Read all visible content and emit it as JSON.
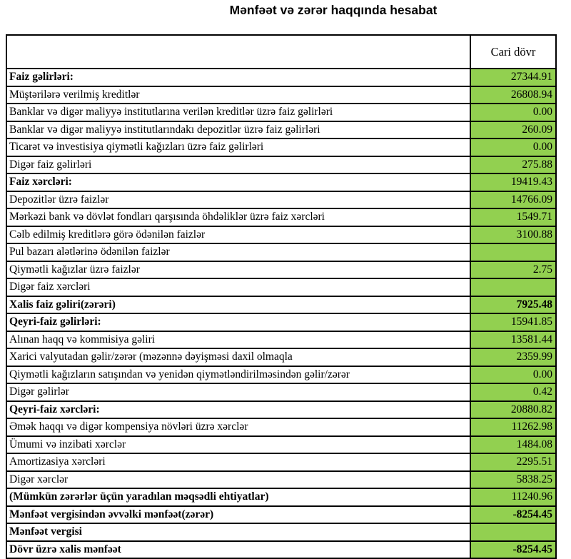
{
  "title": "Mənfəət və zərər haqqında hesabat",
  "colors": {
    "value_cell_bg": "#92d050",
    "border": "#000000"
  },
  "table": {
    "header": {
      "label_column": "",
      "value_column": "Cari dövr"
    },
    "rows": [
      {
        "label": "Faiz gəlirləri:",
        "value": "27344.91",
        "bold_label": true,
        "bold_value": false
      },
      {
        "label": "Müştərilərə verilmiş kreditlər",
        "value": "26808.94",
        "bold_label": false,
        "bold_value": false
      },
      {
        "label": "Banklar və digər maliyyə institutlarına verilən kreditlər üzrə faiz gəlirləri",
        "value": "0.00",
        "bold_label": false,
        "bold_value": false
      },
      {
        "label": "Banklar və digər maliyyə institutlarındakı depozitlər üzrə faiz gəlirləri",
        "value": "260.09",
        "bold_label": false,
        "bold_value": false
      },
      {
        "label": "Ticarət və investisiya qiymətli kağızları üzrə faiz gəlirləri",
        "value": "0.00",
        "bold_label": false,
        "bold_value": false
      },
      {
        "label": "Digər faiz gəlirləri",
        "value": "275.88",
        "bold_label": false,
        "bold_value": false
      },
      {
        "label": "Faiz xərcləri:",
        "value": "19419.43",
        "bold_label": true,
        "bold_value": false
      },
      {
        "label": "Depozitlər üzrə faizlər",
        "value": "14766.09",
        "bold_label": false,
        "bold_value": false
      },
      {
        "label": "Mərkəzi bank və dövlət fondları qarşısında öhdəliklər üzrə faiz xərcləri",
        "value": "1549.71",
        "bold_label": false,
        "bold_value": false
      },
      {
        "label": "Cəlb edilmiş kreditlərə görə ödənilən faizlər",
        "value": "3100.88",
        "bold_label": false,
        "bold_value": false
      },
      {
        "label": "Pul bazarı alətlərinə ödənilən faizlər",
        "value": "",
        "bold_label": false,
        "bold_value": false
      },
      {
        "label": "Qiymətli kağızlar üzrə faizlər",
        "value": "2.75",
        "bold_label": false,
        "bold_value": false
      },
      {
        "label": "Digər faiz xərcləri",
        "value": "",
        "bold_label": false,
        "bold_value": false
      },
      {
        "label": "Xalis faiz gəliri(zərəri)",
        "value": "7925.48",
        "bold_label": true,
        "bold_value": true
      },
      {
        "label": "Qeyri-faiz gəlirləri:",
        "value": "15941.85",
        "bold_label": true,
        "bold_value": false
      },
      {
        "label": "Alınan haqq və kommisiya gəliri",
        "value": "13581.44",
        "bold_label": false,
        "bold_value": false
      },
      {
        "label": "Xarici valyutadan gəlir/zərər (məzənnə dəyişməsi daxil olmaqla",
        "value": "2359.99",
        "bold_label": false,
        "bold_value": false
      },
      {
        "label": "Qiymətli kağızların satışından və yenidən qiymətləndirilməsindən gəlir/zərər",
        "value": "0.00",
        "bold_label": false,
        "bold_value": false
      },
      {
        "label": "Digər gəlirlər",
        "value": "0.42",
        "bold_label": false,
        "bold_value": false
      },
      {
        "label": "Qeyri-faiz xərcləri:",
        "value": "20880.82",
        "bold_label": true,
        "bold_value": false
      },
      {
        "label": "Əmək haqqı və digər kompensiya növləri üzrə xərclər",
        "value": "11262.98",
        "bold_label": false,
        "bold_value": false
      },
      {
        "label": "Ümumi və inzibati xərclər",
        "value": "1484.08",
        "bold_label": false,
        "bold_value": false
      },
      {
        "label": "Amortizasiya xərcləri",
        "value": "2295.51",
        "bold_label": false,
        "bold_value": false
      },
      {
        "label": "Digər xərclər",
        "value": "5838.25",
        "bold_label": false,
        "bold_value": false
      },
      {
        "label": "(Mümkün zərərlər üçün yaradılan məqsədli ehtiyatlar)",
        "value": "11240.96",
        "bold_label": true,
        "bold_value": false
      },
      {
        "label": "Mənfəət vergisindən əvvəlki mənfəət(zərər)",
        "value": "-8254.45",
        "bold_label": true,
        "bold_value": true
      },
      {
        "label": "Mənfəət vergisi",
        "value": "",
        "bold_label": true,
        "bold_value": false
      },
      {
        "label": "Dövr üzrə xalis mənfəət",
        "value": "-8254.45",
        "bold_label": true,
        "bold_value": true
      }
    ]
  }
}
